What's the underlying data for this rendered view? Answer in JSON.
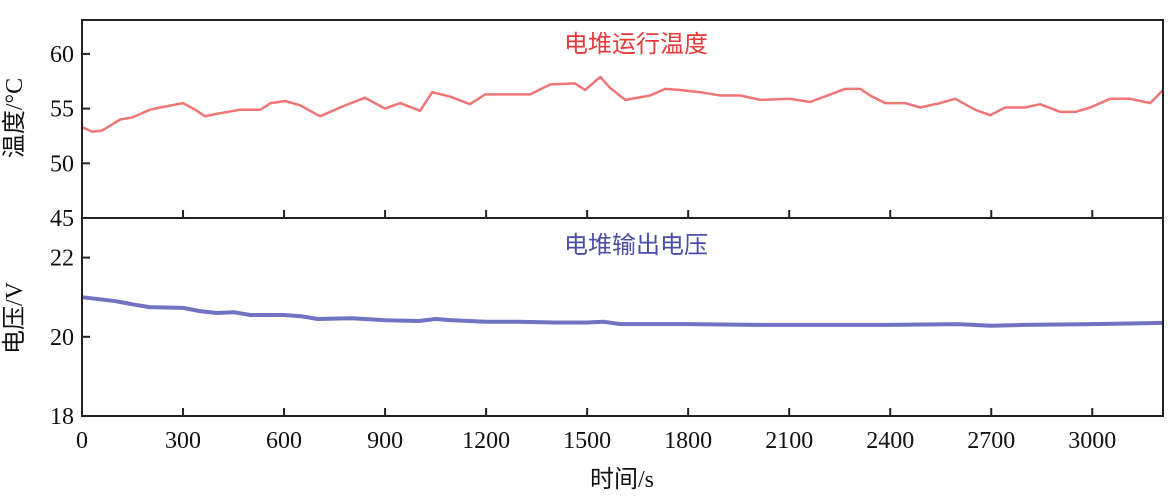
{
  "chart_data": [
    {
      "type": "line",
      "title": "电堆运行温度",
      "xlabel": "时间/s",
      "ylabel": "温度/°C",
      "xlim": [
        0,
        3210
      ],
      "ylim": [
        45,
        63.1
      ],
      "yticks": [
        45,
        50,
        55,
        60
      ],
      "xticks": [
        0,
        300,
        600,
        900,
        1200,
        1500,
        1800,
        2100,
        2400,
        2700,
        3000
      ],
      "color": "#f07575",
      "title_color": "#e83a3a",
      "grid": false,
      "x": [
        0,
        30,
        60,
        113,
        150,
        202,
        232,
        300,
        336,
        365,
        395,
        470,
        530,
        560,
        603,
        648,
        707,
        766,
        840,
        900,
        945,
        1004,
        1040,
        1093,
        1152,
        1197,
        1271,
        1331,
        1390,
        1464,
        1494,
        1539,
        1568,
        1613,
        1687,
        1732,
        1776,
        1836,
        1895,
        1955,
        2014,
        2103,
        2162,
        2222,
        2266,
        2311,
        2340,
        2385,
        2444,
        2489,
        2548,
        2593,
        2652,
        2697,
        2741,
        2800,
        2845,
        2905,
        2949,
        2994,
        3053,
        3113,
        3172,
        3210
      ],
      "y": [
        53.3,
        52.9,
        53.0,
        54.0,
        54.2,
        54.9,
        55.1,
        55.5,
        54.9,
        54.3,
        54.5,
        54.9,
        54.9,
        55.5,
        55.7,
        55.3,
        54.3,
        55.1,
        56.0,
        55.0,
        55.5,
        54.8,
        56.5,
        56.1,
        55.4,
        56.3,
        56.3,
        56.3,
        57.2,
        57.3,
        56.7,
        57.9,
        56.9,
        55.8,
        56.2,
        56.8,
        56.7,
        56.5,
        56.2,
        56.2,
        55.8,
        55.9,
        55.6,
        56.3,
        56.8,
        56.8,
        56.2,
        55.5,
        55.5,
        55.1,
        55.5,
        55.9,
        54.9,
        54.4,
        55.1,
        55.1,
        55.4,
        54.7,
        54.7,
        55.1,
        55.9,
        55.9,
        55.5,
        56.7
      ]
    },
    {
      "type": "line",
      "title": "电堆输出电压",
      "xlabel": "时间/s",
      "ylabel": "电压/V",
      "xlim": [
        0,
        3210
      ],
      "ylim": [
        18,
        23
      ],
      "yticks": [
        18,
        20,
        22
      ],
      "xticks": [
        0,
        300,
        600,
        900,
        1200,
        1500,
        1800,
        2100,
        2400,
        2700,
        3000
      ],
      "color": "#6f73c2",
      "title_color": "#4a4fa3",
      "grid": false,
      "x": [
        0,
        50,
        100,
        150,
        200,
        300,
        350,
        400,
        450,
        500,
        600,
        650,
        700,
        800,
        900,
        1000,
        1050,
        1100,
        1200,
        1300,
        1400,
        1500,
        1550,
        1600,
        1800,
        2000,
        2200,
        2400,
        2600,
        2700,
        2800,
        3000,
        3210
      ],
      "y": [
        21.0,
        20.95,
        20.9,
        20.82,
        20.75,
        20.73,
        20.65,
        20.6,
        20.62,
        20.55,
        20.55,
        20.52,
        20.45,
        20.47,
        20.42,
        20.4,
        20.45,
        20.42,
        20.38,
        20.38,
        20.36,
        20.36,
        20.38,
        20.32,
        20.32,
        20.3,
        20.3,
        20.3,
        20.32,
        20.28,
        20.3,
        20.32,
        20.35
      ]
    }
  ]
}
